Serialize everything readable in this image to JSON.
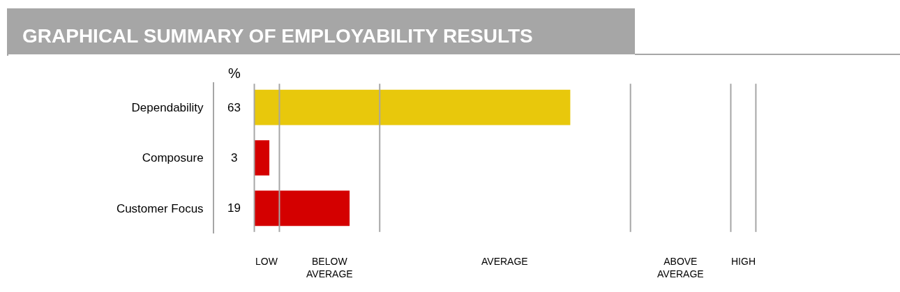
{
  "chart_data": {
    "type": "bar",
    "orientation": "horizontal",
    "title": "GRAPHICAL SUMMARY OF EMPLOYABILITY RESULTS",
    "categories": [
      "Dependability",
      "Composure",
      "Customer Focus"
    ],
    "values": [
      63,
      3,
      19
    ],
    "colors": [
      "#e8c80c",
      "#d40000",
      "#d40000"
    ],
    "data_labels": true,
    "annotations": [
      "%",
      "LOW",
      "BELOW AVERAGE",
      "AVERAGE",
      "ABOVE AVERAGE",
      "HIGH"
    ],
    "xlim": [
      -8,
      100.5
    ],
    "ref_lines": [
      {
        "axis": "x",
        "value": 0,
        "color": "#a6a6a6"
      },
      {
        "axis": "x",
        "value": 5,
        "color": "#a6a6a6"
      },
      {
        "axis": "x",
        "value": 25,
        "color": "#a6a6a6"
      },
      {
        "axis": "x",
        "value": 75,
        "color": "#a6a6a6"
      },
      {
        "axis": "x",
        "value": 95,
        "color": "#a6a6a6"
      },
      {
        "axis": "x",
        "value": 100,
        "color": "#a6a6a6"
      }
    ]
  }
}
